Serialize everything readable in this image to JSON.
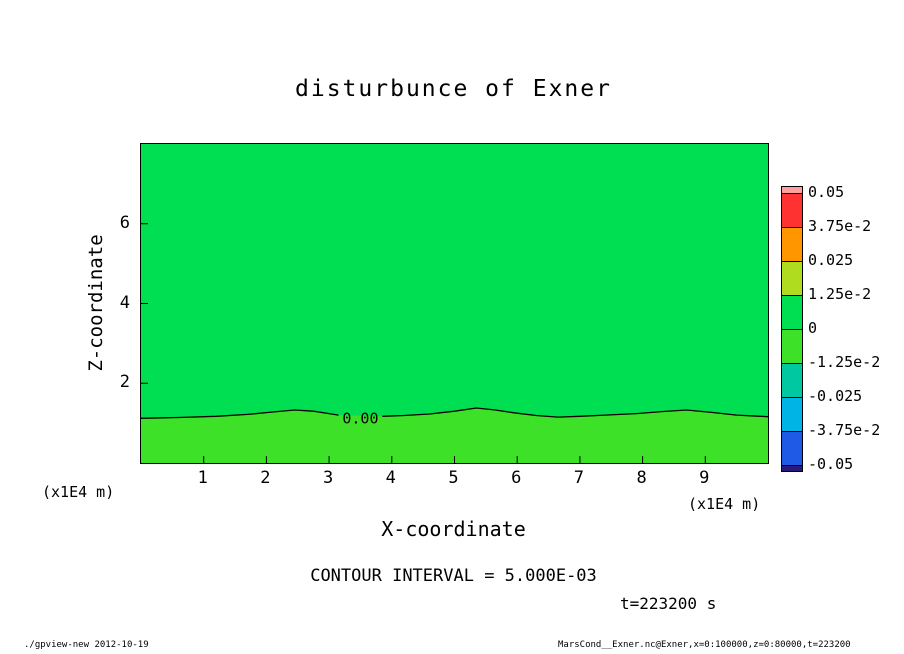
{
  "header": {
    "title": "disturbunce of Exner"
  },
  "plot": {
    "x_axis": {
      "label": "X-coordinate",
      "unit": "(x1E4 m)",
      "tick_labels": [
        "1",
        "2",
        "3",
        "4",
        "5",
        "6",
        "7",
        "8",
        "9"
      ]
    },
    "z_axis": {
      "label": "Z-coordinate",
      "unit": "(x1E4 m)",
      "tick_labels": [
        "2",
        "4",
        "6"
      ]
    },
    "contour_label": "0.00"
  },
  "colorbar": {
    "labels": [
      "0.05",
      "3.75e-2",
      "0.025",
      "1.25e-2",
      "0",
      "-1.25e-2",
      "-0.025",
      "-3.75e-2",
      "-0.05"
    ],
    "band_colors": [
      "#FFA0A0",
      "#FF3232",
      "#FF9600",
      "#AFDC1E",
      "#00DF52",
      "#3CE128",
      "#00C8A0",
      "#00B4E6",
      "#1E5AE6",
      "#28197D"
    ]
  },
  "annotations": {
    "contour_interval": "CONTOUR INTERVAL = 5.000E-03",
    "time": "t=223200 s"
  },
  "footer": {
    "left": "./gpview-new  2012-10-19",
    "right": "MarsCond__Exner.nc@Exner,x=0:100000,z=0:80000,t=223200"
  },
  "chart_data": {
    "type": "heatmap",
    "title": "disturbunce of Exner",
    "xlabel": "X-coordinate",
    "ylabel": "Z-coordinate",
    "axis_unit_factor": "(x1E4 m)",
    "xlim": [
      0,
      10
    ],
    "ylim": [
      0,
      8
    ],
    "x_ticks": [
      1,
      2,
      3,
      4,
      5,
      6,
      7,
      8,
      9
    ],
    "y_ticks": [
      2,
      4,
      6
    ],
    "contour_interval": 0.005,
    "levels": [
      0.05,
      0.0375,
      0.025,
      0.0125,
      0,
      -0.0125,
      -0.025,
      -0.0375,
      -0.05
    ],
    "region_colors": {
      "above_contour": "#00DF52",
      "below_contour": "#3CE128"
    },
    "contours": [
      {
        "level": 0,
        "label": "0.00",
        "label_x": 3.5,
        "label_z": 1.12,
        "segments": [
          [
            [
              0,
              1.12
            ],
            [
              0.6,
              1.14
            ],
            [
              1.2,
              1.17
            ],
            [
              1.7,
              1.22
            ],
            [
              2.1,
              1.28
            ],
            [
              2.45,
              1.33
            ],
            [
              2.75,
              1.3
            ],
            [
              3.0,
              1.24
            ],
            [
              3.15,
              1.2
            ]
          ],
          [
            [
              3.85,
              1.17
            ],
            [
              4.2,
              1.19
            ],
            [
              4.6,
              1.23
            ],
            [
              5.0,
              1.3
            ],
            [
              5.35,
              1.38
            ],
            [
              5.65,
              1.33
            ],
            [
              5.95,
              1.26
            ],
            [
              6.3,
              1.19
            ],
            [
              6.65,
              1.15
            ],
            [
              7.0,
              1.17
            ],
            [
              7.4,
              1.2
            ],
            [
              7.9,
              1.24
            ],
            [
              8.3,
              1.29
            ],
            [
              8.7,
              1.33
            ],
            [
              9.1,
              1.27
            ],
            [
              9.5,
              1.2
            ],
            [
              10,
              1.16
            ]
          ]
        ]
      }
    ]
  }
}
